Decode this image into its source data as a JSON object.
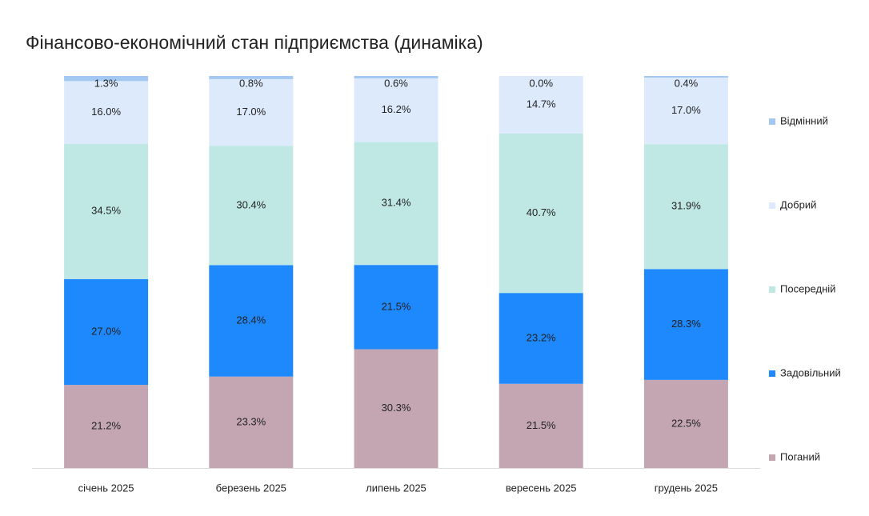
{
  "chart_data": {
    "type": "stacked_bar",
    "title": "Фінансово-економічний стан підприємства (динаміка)",
    "categories": [
      "січень 2025",
      "березень 2025",
      "липень 2025",
      "вересень 2025",
      "грудень 2025"
    ],
    "series": [
      {
        "name": "Поганий",
        "color": "#c4a6b2",
        "values": [
          21.2,
          23.3,
          30.3,
          21.5,
          22.5
        ],
        "value_labels": [
          "21.2%",
          "23.3%",
          "30.3%",
          "21.5%",
          "22.5%"
        ]
      },
      {
        "name": "Задовільний",
        "color": "#1e88fd",
        "values": [
          27.0,
          28.4,
          21.5,
          23.2,
          28.3
        ],
        "value_labels": [
          "27.0%",
          "28.4%",
          "21.5%",
          "23.2%",
          "28.3%"
        ]
      },
      {
        "name": "Посередній",
        "color": "#bfe8e5",
        "values": [
          34.5,
          30.4,
          31.4,
          40.7,
          31.9
        ],
        "value_labels": [
          "34.5%",
          "30.4%",
          "31.4%",
          "40.7%",
          "31.9%"
        ]
      },
      {
        "name": "Добрий",
        "color": "#dceafc",
        "values": [
          16.0,
          17.0,
          16.2,
          14.7,
          17.0
        ],
        "value_labels": [
          "16.0%",
          "17.0%",
          "16.2%",
          "14.7%",
          "17.0%"
        ]
      },
      {
        "name": "Відмінний",
        "color": "#a3c9f2",
        "values": [
          1.3,
          0.8,
          0.6,
          0.0,
          0.4
        ],
        "value_labels": [
          "1.3%",
          "0.8%",
          "0.6%",
          "0.0%",
          "0.4%"
        ]
      }
    ],
    "legend": "right"
  }
}
